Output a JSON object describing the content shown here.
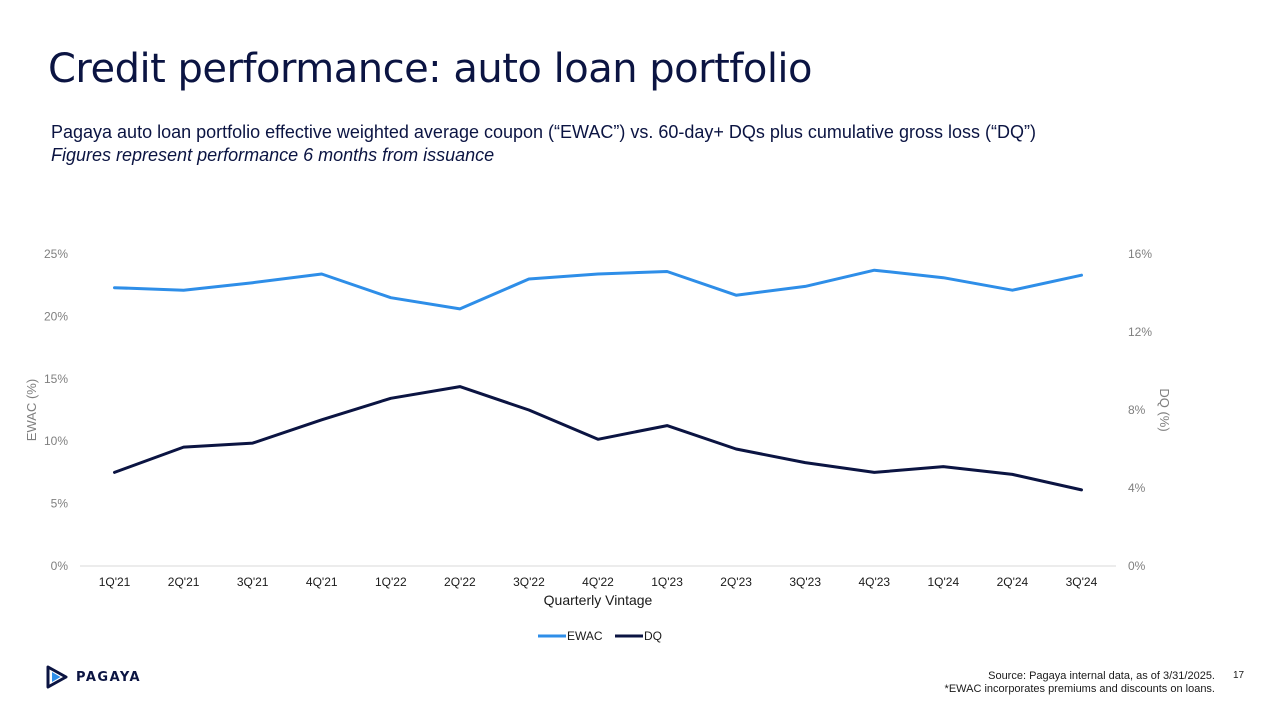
{
  "slide": {
    "title": "Credit performance: auto loan portfolio",
    "subtitle": "Pagaya auto loan portfolio effective weighted average coupon (“EWAC”) vs. 60-day+ DQs plus cumulative gross loss (“DQ”)",
    "subnote": "Figures represent performance 6 months from issuance",
    "logo_text": "PAGAYA",
    "source": "Source: Pagaya internal data, as of 3/31/2025.",
    "footnote": "*EWAC incorporates premiums and discounts on loans.",
    "page_number": "17"
  },
  "colors": {
    "ewac": "#2e8ee8",
    "dq": "#0b1442",
    "logo_accent": "#2e8ee8"
  },
  "chart_data": {
    "type": "line",
    "categories": [
      "1Q'21",
      "2Q'21",
      "3Q'21",
      "4Q'21",
      "1Q'22",
      "2Q'22",
      "3Q'22",
      "4Q'22",
      "1Q'23",
      "2Q'23",
      "3Q'23",
      "4Q'23",
      "1Q'24",
      "2Q'24",
      "3Q'24"
    ],
    "xlabel": "Quarterly Vintage",
    "y_left": {
      "label": "EWAC (%)",
      "range": [
        0,
        25
      ],
      "ticks": [
        0,
        5,
        10,
        15,
        20,
        25
      ],
      "tick_labels": [
        "0%",
        "5%",
        "10%",
        "15%",
        "20%",
        "25%"
      ]
    },
    "y_right": {
      "label": "DQ (%)",
      "range": [
        0,
        16
      ],
      "ticks": [
        0,
        4,
        8,
        12,
        16
      ],
      "tick_labels": [
        "0%",
        "4%",
        "8%",
        "12%",
        "16%"
      ]
    },
    "series": [
      {
        "name": "EWAC",
        "axis": "left",
        "values": [
          22.3,
          22.1,
          22.7,
          23.4,
          21.5,
          20.6,
          23.0,
          23.4,
          23.6,
          21.7,
          22.4,
          23.7,
          23.1,
          22.1,
          23.3
        ]
      },
      {
        "name": "DQ",
        "axis": "right",
        "values": [
          4.8,
          6.1,
          6.3,
          7.5,
          8.6,
          9.2,
          8.0,
          6.5,
          7.2,
          6.0,
          5.3,
          4.8,
          5.1,
          4.7,
          3.9
        ]
      }
    ],
    "legend_position": "bottom-center",
    "grid": false
  }
}
